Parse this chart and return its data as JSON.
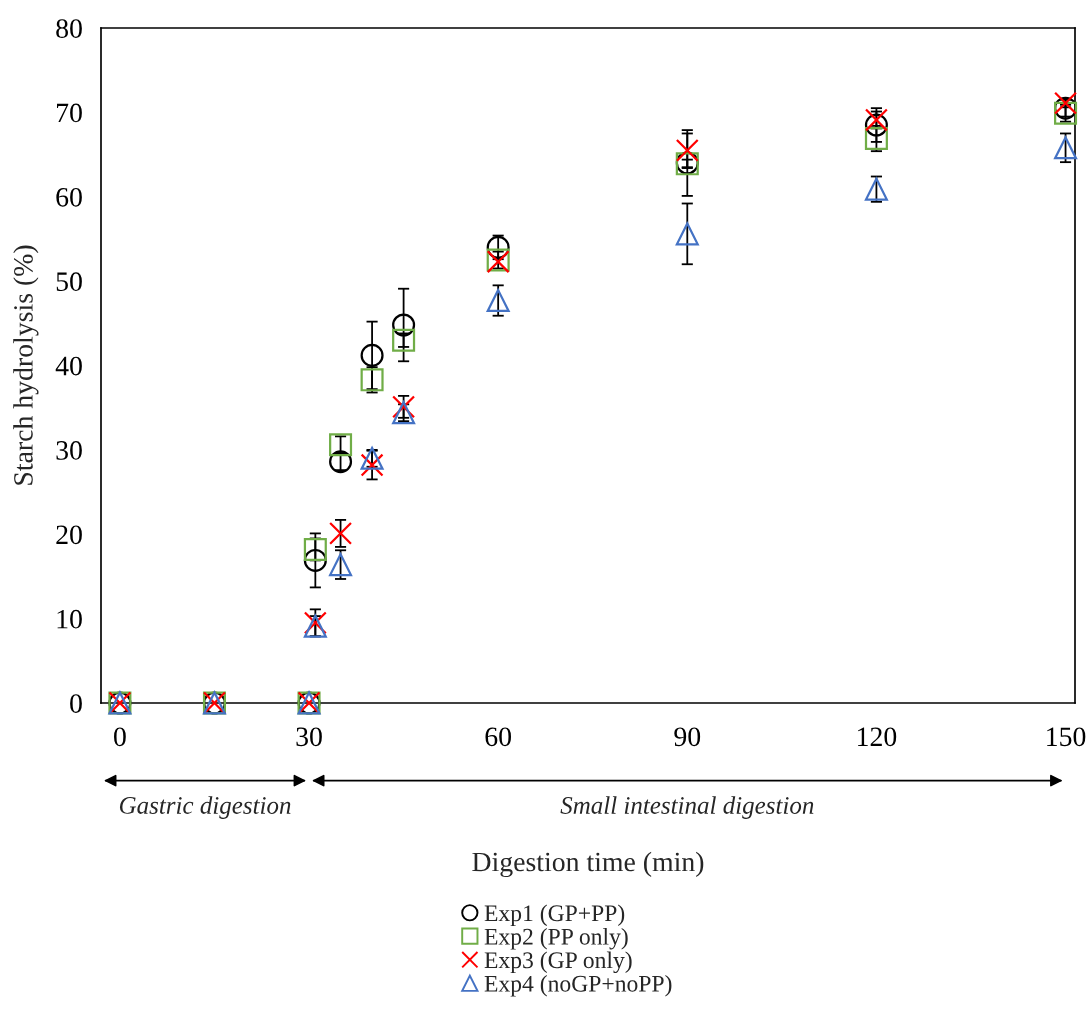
{
  "chart_data": {
    "type": "scatter",
    "xlabel": "Digestion time (min)",
    "ylabel": "Starch hydrolysis (%)",
    "x": [
      0,
      15,
      30,
      31,
      35,
      40,
      45,
      60,
      90,
      120,
      150
    ],
    "xlim": [
      -3,
      151.5
    ],
    "xticks": [
      0,
      30,
      60,
      90,
      120,
      150
    ],
    "ylim": [
      0,
      80
    ],
    "yticks": [
      0,
      10,
      20,
      30,
      40,
      50,
      60,
      70,
      80
    ],
    "grid": false,
    "legend": "bottom",
    "annotations": [
      "Gastric digestion",
      "Small intestinal digestion"
    ],
    "series": [
      {
        "name": "Exp1 (GP+PP)",
        "color": "#000000",
        "marker": "circle",
        "values": [
          0,
          0,
          0,
          16.9,
          28.6,
          41.2,
          44.8,
          54.0,
          64.0,
          68.5,
          70.5
        ],
        "errors": [
          null,
          null,
          null,
          3.2,
          1.0,
          4.0,
          4.3,
          1.4,
          3.9,
          2.0,
          1.0
        ]
      },
      {
        "name": "Exp2 (PP only)",
        "color": "#70ad47",
        "marker": "square",
        "values": [
          0,
          0,
          0,
          18.2,
          30.6,
          38.3,
          43.0,
          52.5,
          63.9,
          66.9,
          69.9
        ],
        "errors": [
          null,
          null,
          null,
          1.3,
          1.0,
          1.5,
          0.8,
          1.0,
          0.5,
          1.5,
          1.0
        ]
      },
      {
        "name": "Exp3 (GP only)",
        "color": "#ff0000",
        "marker": "cross",
        "values": [
          0,
          0,
          0,
          9.5,
          20.1,
          28.2,
          35.1,
          52.3,
          65.5,
          69.1,
          71.1
        ],
        "errors": [
          null,
          null,
          null,
          1.6,
          1.6,
          1.7,
          1.3,
          null,
          2.0,
          1.0,
          0.5
        ]
      },
      {
        "name": "Exp4 (noGP+noPP)",
        "color": "#4472c4",
        "marker": "triangle",
        "values": [
          0,
          0,
          0,
          9.1,
          16.4,
          29.0,
          34.4,
          47.7,
          55.6,
          60.9,
          65.8
        ],
        "errors": [
          null,
          null,
          null,
          1.2,
          1.7,
          1.0,
          1.0,
          1.8,
          3.6,
          1.5,
          1.7
        ]
      }
    ]
  }
}
